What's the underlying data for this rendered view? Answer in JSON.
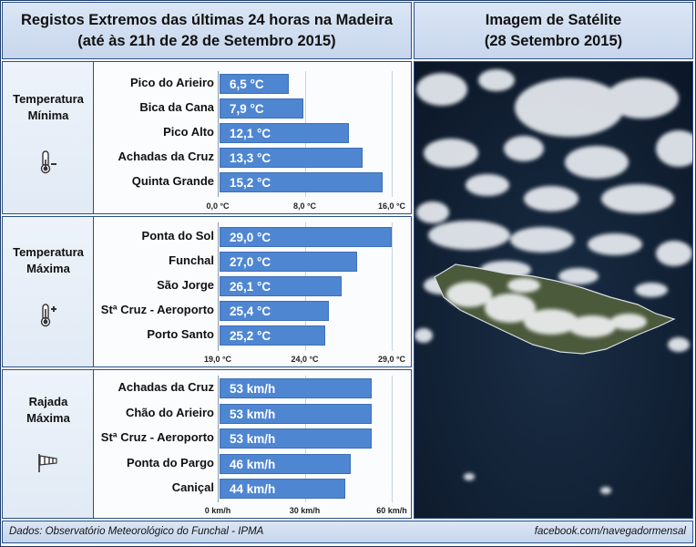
{
  "header": {
    "left_line1": "Registos Extremos das últimas 24 horas na Madeira",
    "left_line2": "(até às 21h de 28 de Setembro 2015)",
    "right_line1": "Imagem de Satélite",
    "right_line2": "(28 Setembro 2015)"
  },
  "sections": [
    {
      "title_line1": "Temperatura",
      "title_line2": "Mínima",
      "icon": "thermometer-minus-icon"
    },
    {
      "title_line1": "Temperatura",
      "title_line2": "Máxima",
      "icon": "thermometer-plus-icon"
    },
    {
      "title_line1": "Rajada",
      "title_line2": "Máxima",
      "icon": "windsock-icon"
    }
  ],
  "chart_data": [
    {
      "type": "bar",
      "orientation": "horizontal",
      "categories": [
        "Pico do Arieiro",
        "Bica da Cana",
        "Pico Alto",
        "Achadas da Cruz",
        "Quinta Grande"
      ],
      "values": [
        6.5,
        7.9,
        12.1,
        13.3,
        15.2
      ],
      "labels": [
        "6,5 °C",
        "7,9 °C",
        "12,1 °C",
        "13,3 °C",
        "15,2 °C"
      ],
      "xlim": [
        0,
        16
      ],
      "ticks": [
        0,
        8,
        16
      ],
      "tick_labels": [
        "0,0 °C",
        "8,0 °C",
        "16,0 °C"
      ],
      "bar_color": "#4f86d2"
    },
    {
      "type": "bar",
      "orientation": "horizontal",
      "categories": [
        "Ponta do Sol",
        "Funchal",
        "São Jorge",
        "Stª Cruz - Aeroporto",
        "Porto Santo"
      ],
      "values": [
        29.0,
        27.0,
        26.1,
        25.4,
        25.2
      ],
      "labels": [
        "29,0 °C",
        "27,0 °C",
        "26,1 °C",
        "25,4 °C",
        "25,2 °C"
      ],
      "xlim": [
        19,
        29
      ],
      "ticks": [
        19,
        24,
        29
      ],
      "tick_labels": [
        "19,0 °C",
        "24,0 °C",
        "29,0 °C"
      ],
      "bar_color": "#4f86d2"
    },
    {
      "type": "bar",
      "orientation": "horizontal",
      "categories": [
        "Achadas da Cruz",
        "Chão do Arieiro",
        "Stª Cruz - Aeroporto",
        "Ponta do Pargo",
        "Caniçal"
      ],
      "values": [
        53,
        53,
        53,
        46,
        44
      ],
      "labels": [
        "53 km/h",
        "53 km/h",
        "53 km/h",
        "46 km/h",
        "44 km/h"
      ],
      "xlim": [
        0,
        60
      ],
      "ticks": [
        0,
        30,
        60
      ],
      "tick_labels": [
        "0 km/h",
        "30 km/h",
        "60 km/h"
      ],
      "bar_color": "#4f86d2"
    }
  ],
  "footer": {
    "source": "Dados:  Observatório Meteorológico do Funchal - IPMA",
    "credit": "facebook.com/navegadormensal"
  }
}
